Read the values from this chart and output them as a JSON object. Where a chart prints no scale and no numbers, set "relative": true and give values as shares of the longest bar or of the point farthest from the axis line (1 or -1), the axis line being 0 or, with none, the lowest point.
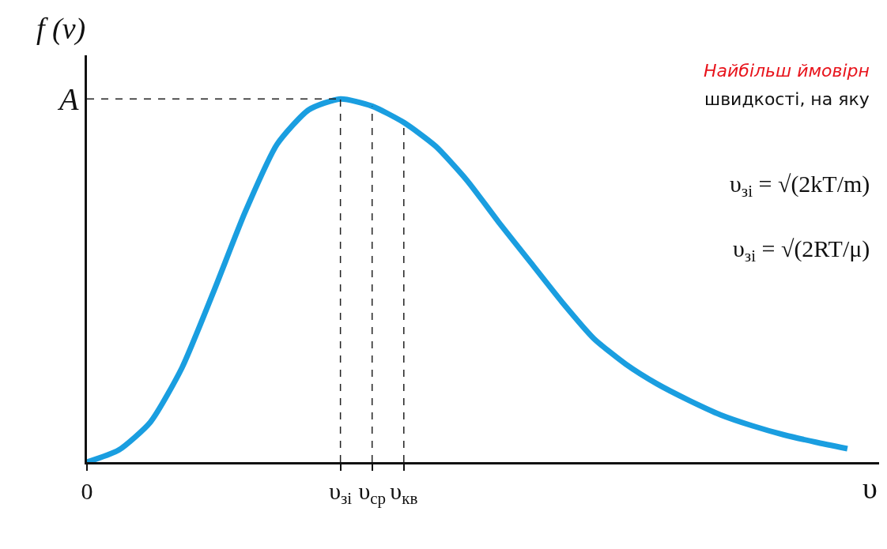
{
  "chart_data": {
    "type": "line",
    "relative": true,
    "xlabel": "υ",
    "ylabel": "f (ν)",
    "categories": [
      "0",
      null,
      null,
      null,
      null,
      null,
      null,
      null,
      "υ$_{зі}$",
      "υ$_{ср}$",
      "υ$_{кв}$",
      null,
      null,
      null,
      null,
      null,
      null,
      null,
      null,
      null,
      null,
      null,
      null,
      null,
      null,
      null
    ],
    "series": [
      {
        "color": "#1a9ee0",
        "values": [
          0,
          0.033,
          0.11,
          0.26,
          0.47,
          0.69,
          0.875,
          0.97,
          1.0,
          0.98,
          0.935,
          0.87,
          0.775,
          0.66,
          0.55,
          0.44,
          0.34,
          0.27,
          0.215,
          0.17,
          0.13,
          0.1,
          0.075,
          0.055,
          0.037,
          null
        ]
      }
    ],
    "ref_lines": [
      {
        "axis": "y",
        "value": 1,
        "label": "A",
        "line_style": "dashed",
        "color": "#222222"
      },
      {
        "axis": "x",
        "value": "υ$_{зі}$",
        "line_style": "dashed",
        "color": "#222222"
      },
      {
        "axis": "x",
        "value": "υ$_{ср}$",
        "line_style": "dashed",
        "color": "#222222"
      },
      {
        "axis": "x",
        "value": "υ$_{кв}$",
        "line_style": "dashed",
        "color": "#222222"
      }
    ],
    "annotations": [
      "Найбільш ймовірн",
      "швидкості, на яку",
      "υ$_{зі}$ = √(2kT/m)",
      "υ$_{зі}$ = √(2RT/μ)"
    ],
    "legend": false,
    "marker": "none",
    "line_style": "solid"
  }
}
